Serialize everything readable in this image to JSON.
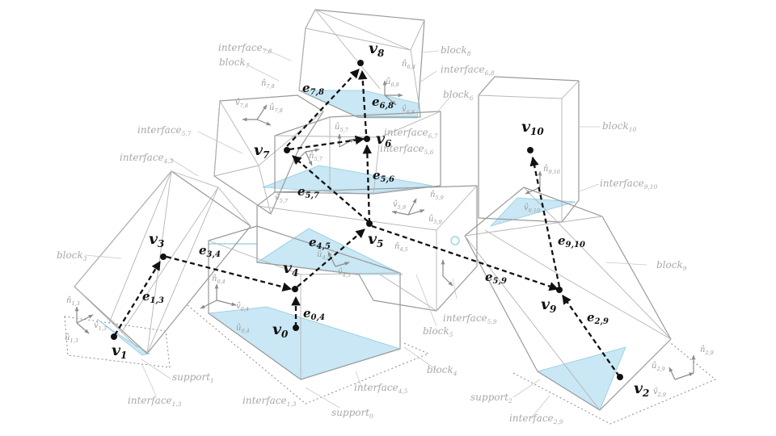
{
  "diagram": {
    "vertices": [
      {
        "id": "v0",
        "sym": "v",
        "sub": "0"
      },
      {
        "id": "v1",
        "sym": "v",
        "sub": "1"
      },
      {
        "id": "v2",
        "sym": "v",
        "sub": "2"
      },
      {
        "id": "v3",
        "sym": "v",
        "sub": "3"
      },
      {
        "id": "v4",
        "sym": "v",
        "sub": "4"
      },
      {
        "id": "v5",
        "sym": "v",
        "sub": "5"
      },
      {
        "id": "v6",
        "sym": "v",
        "sub": "6"
      },
      {
        "id": "v7",
        "sym": "v",
        "sub": "7"
      },
      {
        "id": "v8",
        "sym": "v",
        "sub": "8"
      },
      {
        "id": "v9",
        "sym": "v",
        "sub": "9"
      },
      {
        "id": "v10",
        "sym": "v",
        "sub": "10"
      }
    ],
    "edges": [
      {
        "id": "e04",
        "sym": "e",
        "sub": "0,4"
      },
      {
        "id": "e13",
        "sym": "e",
        "sub": "1,3"
      },
      {
        "id": "e34",
        "sym": "e",
        "sub": "3,4"
      },
      {
        "id": "e45",
        "sym": "e",
        "sub": "4,5"
      },
      {
        "id": "e56",
        "sym": "e",
        "sub": "5,6"
      },
      {
        "id": "e57",
        "sym": "e",
        "sub": "5,7"
      },
      {
        "id": "e59",
        "sym": "e",
        "sub": "5,9"
      },
      {
        "id": "e29",
        "sym": "e",
        "sub": "2,9"
      },
      {
        "id": "e910",
        "sym": "e",
        "sub": "9,10"
      },
      {
        "id": "e78",
        "sym": "e",
        "sub": "7,8"
      },
      {
        "id": "e68",
        "sym": "e",
        "sub": "6,8"
      },
      {
        "id": "e76",
        "sym": "e",
        "sub": ""
      }
    ],
    "labels": {
      "block3": {
        "text": "block",
        "sub": "3"
      },
      "block4": {
        "text": "block",
        "sub": "4"
      },
      "block5": {
        "text": "block",
        "sub": "5"
      },
      "block7": {
        "text": "block",
        "sub": "7"
      },
      "block8": {
        "text": "block",
        "sub": "8"
      },
      "block6": {
        "text": "block",
        "sub": "6"
      },
      "block9": {
        "text": "block",
        "sub": "9"
      },
      "block10": {
        "text": "block",
        "sub": "10"
      },
      "interface78": {
        "text": "interface",
        "sub": "7,8"
      },
      "interface68": {
        "text": "interface",
        "sub": "6,8"
      },
      "interface57": {
        "text": "interface",
        "sub": "5,7"
      },
      "interface67": {
        "text": "interface",
        "sub": "6,7"
      },
      "interface56": {
        "text": "interface",
        "sub": "5,6"
      },
      "interface43": {
        "text": "interface",
        "sub": "4,3"
      },
      "interface910": {
        "text": "interface",
        "sub": "9,10"
      },
      "interface59": {
        "text": "interface",
        "sub": "5,9"
      },
      "interface45": {
        "text": "interface",
        "sub": "4,5"
      },
      "interface13": {
        "text": "interface",
        "sub": "1,3"
      },
      "interface13b": {
        "text": "interface",
        "sub": "1,3"
      },
      "interface29": {
        "text": "interface",
        "sub": "2,9"
      },
      "support1": {
        "text": "support",
        "sub": "1"
      },
      "support0": {
        "text": "support",
        "sub": "0"
      },
      "support2": {
        "text": "support",
        "sub": "2"
      }
    },
    "axes": {
      "n13": {
        "sym": "n̂",
        "sub": "1,3"
      },
      "v13": {
        "sym": "v̂",
        "sub": "1,3"
      },
      "u13": {
        "sym": "û",
        "sub": "1,3"
      },
      "n04": {
        "sym": "n̂",
        "sub": "0,4"
      },
      "v04": {
        "sym": "v̂",
        "sub": "0,4"
      },
      "u04": {
        "sym": "û",
        "sub": "0,4"
      },
      "n78": {
        "sym": "n̂",
        "sub": "7,8"
      },
      "v78": {
        "sym": "v̂",
        "sub": "7,8"
      },
      "u78": {
        "sym": "û",
        "sub": "7,8"
      },
      "n68": {
        "sym": "n̂",
        "sub": "6,8"
      },
      "u68": {
        "sym": "û",
        "sub": "6,8"
      },
      "v68": {
        "sym": "v̂",
        "sub": "6,8"
      },
      "n57": {
        "sym": "n̂",
        "sub": "5,7"
      },
      "u57": {
        "sym": "û",
        "sub": "5,7"
      },
      "v57": {
        "sym": "v̂",
        "sub": "5,7"
      },
      "n59": {
        "sym": "n̂",
        "sub": "5,9"
      },
      "v59": {
        "sym": "v̂",
        "sub": "5,9"
      },
      "u59": {
        "sym": "û",
        "sub": "5,9"
      },
      "n45": {
        "sym": "n̂",
        "sub": "4,5"
      },
      "v45": {
        "sym": "v̂",
        "sub": "4,5"
      },
      "u45": {
        "sym": "û",
        "sub": "4,5"
      },
      "n910": {
        "sym": "n̂",
        "sub": "9,10"
      },
      "v910": {
        "sym": "v̂",
        "sub": "9,10"
      },
      "n29": {
        "sym": "n̂",
        "sub": "2,9"
      },
      "u29": {
        "sym": "û",
        "sub": "2,9"
      },
      "v29": {
        "sym": "v̂",
        "sub": "2,9"
      }
    }
  }
}
